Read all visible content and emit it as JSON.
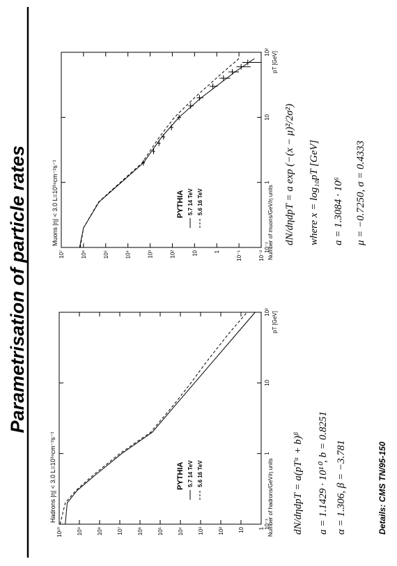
{
  "title": "Parametrisation of particle rates",
  "details": "Details: CMS TN/95-150",
  "chart_data": [
    {
      "type": "line",
      "label": "Hadrons  |η| < 3.0  L=10³⁴cm⁻²s⁻¹",
      "xlabel": "pT [GeV]",
      "ylabel": "Number of hadrons/GeV/η units",
      "log_x": true,
      "log_y": true,
      "xlim": [
        0.1,
        100
      ],
      "ylim": [
        1,
        10000000000
      ],
      "xticks": [
        {
          "value": 0.1,
          "label": "10⁻¹"
        },
        1,
        10,
        {
          "value": 100,
          "label": "10²"
        }
      ],
      "yticks": [
        1,
        10,
        {
          "value": 100,
          "label": "10²"
        },
        {
          "value": 1000,
          "label": "10³"
        },
        {
          "value": 10000,
          "label": "10⁴"
        },
        {
          "value": 100000,
          "label": "10⁵"
        },
        {
          "value": 1000000,
          "label": "10⁶"
        },
        {
          "value": 10000000,
          "label": "10⁷"
        },
        {
          "value": 100000000,
          "label": "10⁸"
        },
        {
          "value": 1000000000,
          "label": "10⁹"
        },
        {
          "value": 10000000000,
          "label": "10¹⁰"
        }
      ],
      "legend_title": "PYTHIA",
      "x": [
        0.1,
        0.2,
        0.3,
        0.5,
        1,
        2,
        5,
        10,
        20,
        50,
        100
      ],
      "series": [
        {
          "name": "5.7   14 TeV",
          "color": "#000000",
          "dash": false,
          "values": [
            5000000000,
            4000000000,
            1300000000,
            160000000,
            8000000,
            250000,
            16000,
            2000,
            250,
            16,
            2
          ]
        },
        {
          "name": "5.6   16 TeV",
          "color": "#000000",
          "dash": true,
          "values": [
            9000000000,
            5000000000,
            1500000000,
            200000000,
            10000000,
            300000,
            20000,
            3000,
            500,
            40,
            5
          ]
        }
      ],
      "formula": [
        "dN/dηdpT = a(pTᵅ + b)ᵝ",
        "a = 1.1429 · 10¹⁰,  b = 0.8251",
        "α = 1.306,  β = −3.781"
      ]
    },
    {
      "type": "line",
      "label": "Muons  |η| < 3.0  L=10³⁴cm⁻²s⁻¹",
      "xlabel": "pT [GeV]",
      "ylabel": "Number of muons/GeV/η units",
      "log_x": true,
      "log_y": true,
      "xlim": [
        0.1,
        100
      ],
      "ylim": [
        0.01,
        10000000
      ],
      "xticks": [
        {
          "value": 0.1,
          "label": "10⁻¹"
        },
        1,
        10,
        {
          "value": 100,
          "label": "10²"
        }
      ],
      "yticks": [
        {
          "value": 0.01,
          "label": "10⁻²"
        },
        {
          "value": 0.1,
          "label": "10⁻¹"
        },
        1,
        10,
        {
          "value": 100,
          "label": "10²"
        },
        {
          "value": 1000,
          "label": "10³"
        },
        {
          "value": 10000,
          "label": "10⁴"
        },
        {
          "value": 100000,
          "label": "10⁵"
        },
        {
          "value": 1000000,
          "label": "10⁶"
        },
        {
          "value": 10000000,
          "label": "10⁷"
        }
      ],
      "legend_title": "PYTHIA",
      "x": [
        0.1,
        0.2,
        0.5,
        1,
        2,
        5,
        10,
        20,
        50,
        80
      ],
      "series": [
        {
          "name": "5.7   14 TeV",
          "color": "#000000",
          "dash": false,
          "values": [
            1500000,
            1000000,
            200000,
            20000,
            2000,
            300,
            50,
            5,
            0.15,
            0.02
          ]
        },
        {
          "name": "5.6   16 TeV",
          "color": "#000000",
          "dash": true,
          "values": [
            1400000,
            1000000,
            210000,
            22000,
            2300,
            380,
            80,
            10,
            0.5,
            0.1
          ]
        }
      ],
      "data_points": {
        "x": [
          2,
          3,
          4,
          5,
          7,
          10,
          15,
          20,
          30,
          40,
          50,
          60,
          70
        ],
        "values": [
          2000,
          700,
          400,
          250,
          110,
          50,
          15,
          6,
          1.5,
          0.5,
          0.2,
          0.08,
          0.04
        ],
        "errors": [
          300,
          100,
          60,
          40,
          20,
          10,
          4,
          2,
          0.6,
          0.25,
          0.1,
          0.05,
          0.03
        ]
      },
      "formula": [
        "dN/dηdpT = a exp (−(x − μ)²/2σ²)",
        "where   x = log₁₀pT [GeV]",
        "a = 1.3084 · 10⁶",
        "μ = −0.7250,   σ = 0.4333"
      ]
    }
  ]
}
